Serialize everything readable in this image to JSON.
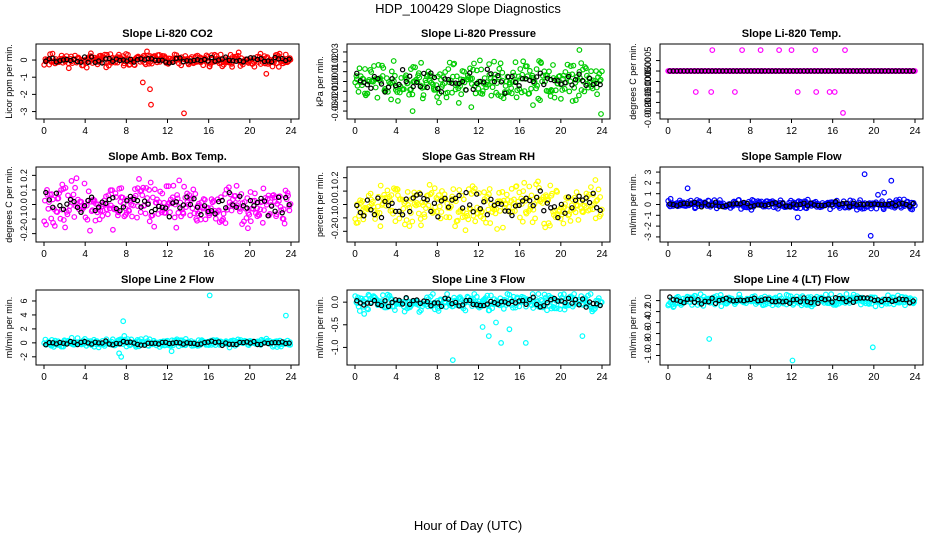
{
  "figure": {
    "title": "HDP_100429  Slope Diagnostics",
    "xlabel": "Hour of Day (UTC)"
  },
  "chart_data": [
    {
      "type": "scatter",
      "title": "Slope Li-820 CO2",
      "ylabel": "Licor ppm per min.",
      "xlim": [
        0,
        24
      ],
      "xticks": [
        0,
        4,
        8,
        12,
        16,
        20,
        24
      ],
      "ylim": [
        -3.2,
        0.7
      ],
      "yticks": [
        -3,
        -2,
        -1,
        0
      ],
      "ytick_labels": [
        "-3",
        "-2",
        "-1",
        "0"
      ],
      "color": "#ff0000",
      "spread": 0.22,
      "noise_seed": 11,
      "outliers": [
        [
          9.6,
          -1.3
        ],
        [
          10.3,
          -1.7
        ],
        [
          10.4,
          -2.6
        ],
        [
          13.6,
          -3.1
        ],
        [
          21.6,
          -0.8
        ]
      ]
    },
    {
      "type": "scatter",
      "title": "Slope Li-820 Pressure",
      "ylabel": "kPa per min.",
      "xlim": [
        0,
        24
      ],
      "xticks": [
        0,
        4,
        8,
        12,
        16,
        20,
        24
      ],
      "ylim": [
        -0.034,
        0.034
      ],
      "yticks": [
        -0.03,
        -0.02,
        -0.01,
        0,
        0.01,
        0.02,
        0.03
      ],
      "ytick_labels": [
        "-0.03",
        "-0.02",
        "-0.01",
        "0.00",
        "0.01",
        "0.02",
        "0.03"
      ],
      "color": "#00cc00",
      "spread": 0.012,
      "noise_seed": 23,
      "outliers": [
        [
          5.6,
          -0.03
        ],
        [
          11.3,
          -0.026
        ],
        [
          17.3,
          -0.024
        ],
        [
          21.8,
          0.032
        ],
        [
          23.9,
          -0.033
        ]
      ]
    },
    {
      "type": "scatter",
      "title": "Slope Li-820 Temp.",
      "ylabel": "degrees C per min.",
      "xlim": [
        0,
        24
      ],
      "xticks": [
        0,
        4,
        8,
        12,
        16,
        20,
        24
      ],
      "ylim": [
        -0.0021,
        0.0011
      ],
      "yticks": [
        -0.002,
        -0.0015,
        -0.001,
        -0.0005,
        0,
        0.0005
      ],
      "ytick_labels": [
        "-0.0020",
        "-0.0015",
        "-0.0010",
        "-0.0005",
        "0.0000",
        "0.0005"
      ],
      "color": "#ff00ff",
      "spread": 0,
      "noise_seed": 31,
      "outliers": [
        [
          4.3,
          0.001
        ],
        [
          7.2,
          0.001
        ],
        [
          9.0,
          0.001
        ],
        [
          10.8,
          0.001
        ],
        [
          12.0,
          0.001
        ],
        [
          14.3,
          0.001
        ],
        [
          17.2,
          0.001
        ],
        [
          2.7,
          -0.001
        ],
        [
          4.2,
          -0.001
        ],
        [
          6.5,
          -0.001
        ],
        [
          12.6,
          -0.001
        ],
        [
          14.4,
          -0.001
        ],
        [
          15.7,
          -0.001
        ],
        [
          16.2,
          -0.001
        ],
        [
          17.0,
          -0.002
        ]
      ]
    },
    {
      "type": "scatter",
      "title": "Slope Amb. Box Temp.",
      "ylabel": "degrees C per min.",
      "xlim": [
        0,
        24
      ],
      "xticks": [
        0,
        4,
        8,
        12,
        16,
        20,
        24
      ],
      "ylim": [
        -0.23,
        0.23
      ],
      "yticks": [
        -0.2,
        -0.1,
        0,
        0.1,
        0.2
      ],
      "ytick_labels": [
        "-0.2",
        "-0.1",
        "0.0",
        "0.1",
        "0.2"
      ],
      "color": "#ff00ff",
      "spread": 0.09,
      "noise_seed": 43,
      "outliers": []
    },
    {
      "type": "scatter",
      "title": "Slope Gas Stream RH",
      "ylabel": "percent per min.",
      "xlim": [
        0,
        24
      ],
      "xticks": [
        0,
        4,
        8,
        12,
        16,
        20,
        24
      ],
      "ylim": [
        -0.25,
        0.25
      ],
      "yticks": [
        -0.2,
        -0.1,
        0,
        0.1,
        0.2
      ],
      "ytick_labels": [
        "-0.2",
        "-0.1",
        "0.0",
        "0.1",
        "0.2"
      ],
      "color": "#ffff00",
      "spread": 0.1,
      "noise_seed": 53,
      "outliers": []
    },
    {
      "type": "scatter",
      "title": "Slope Sample Flow",
      "ylabel": "ml/min per min.",
      "xlim": [
        0,
        24
      ],
      "xticks": [
        0,
        4,
        8,
        12,
        16,
        20,
        24
      ],
      "ylim": [
        -3.1,
        3.1
      ],
      "yticks": [
        -3,
        -2,
        -1,
        0,
        1,
        2,
        3
      ],
      "ytick_labels": [
        "-3",
        "-2",
        "-1",
        "0",
        "1",
        "2",
        "3"
      ],
      "color": "#0000ff",
      "spread": 0.25,
      "noise_seed": 61,
      "outliers": [
        [
          1.9,
          1.5
        ],
        [
          12.6,
          -1.2
        ],
        [
          19.1,
          2.8
        ],
        [
          19.7,
          -2.9
        ],
        [
          20.4,
          0.9
        ],
        [
          21.0,
          1.1
        ],
        [
          21.7,
          2.2
        ]
      ]
    },
    {
      "type": "scatter",
      "title": "Slope Line 2 Flow",
      "ylabel": "ml/min per min.",
      "xlim": [
        0,
        24
      ],
      "xticks": [
        0,
        4,
        8,
        12,
        16,
        20,
        24
      ],
      "ylim": [
        -2.6,
        7.0
      ],
      "yticks": [
        -2,
        0,
        2,
        4,
        6
      ],
      "ytick_labels": [
        "-2",
        "0",
        "2",
        "4",
        "6"
      ],
      "color": "#00ffff",
      "spread": 0.35,
      "noise_seed": 71,
      "outliers": [
        [
          7.3,
          -1.5
        ],
        [
          7.5,
          -2.0
        ],
        [
          7.7,
          3.1
        ],
        [
          7.8,
          1.0
        ],
        [
          12.4,
          -1.2
        ],
        [
          16.1,
          6.8
        ],
        [
          23.5,
          3.9
        ]
      ]
    },
    {
      "type": "scatter",
      "title": "Slope Line 3 Flow",
      "ylabel": "ml/min per min.",
      "xlim": [
        0,
        24
      ],
      "xticks": [
        0,
        4,
        8,
        12,
        16,
        20,
        24
      ],
      "ylim": [
        -1.3,
        0.18
      ],
      "yticks": [
        -1,
        -0.5,
        0
      ],
      "ytick_labels": [
        "-1.0",
        "-0.5",
        "0.0"
      ],
      "color": "#00ffff",
      "spread": 0.12,
      "noise_seed": 83,
      "outliers": [
        [
          9.5,
          -1.28
        ],
        [
          12.4,
          -0.55
        ],
        [
          13.0,
          -0.75
        ],
        [
          13.7,
          -0.45
        ],
        [
          14.2,
          -0.9
        ],
        [
          15.0,
          -0.6
        ],
        [
          16.6,
          -0.9
        ],
        [
          22.1,
          -0.75
        ]
      ]
    },
    {
      "type": "scatter",
      "title": "Slope Line 4 (LT) Flow",
      "ylabel": "ml/min per min.",
      "xlim": [
        0,
        24
      ],
      "xticks": [
        0,
        4,
        8,
        12,
        16,
        20,
        24
      ],
      "ylim": [
        -1.1,
        0.12
      ],
      "yticks": [
        -1,
        -0.8,
        -0.6,
        -0.4,
        -0.2,
        0
      ],
      "ytick_labels": [
        "-1.0",
        "-0.8",
        "-0.6",
        "-0.4",
        "-0.2",
        "0.0"
      ],
      "color": "#00ffff",
      "spread": 0.06,
      "noise_seed": 97,
      "outliers": [
        [
          4.0,
          -0.7
        ],
        [
          12.1,
          -1.09
        ],
        [
          19.9,
          -0.85
        ]
      ]
    }
  ]
}
